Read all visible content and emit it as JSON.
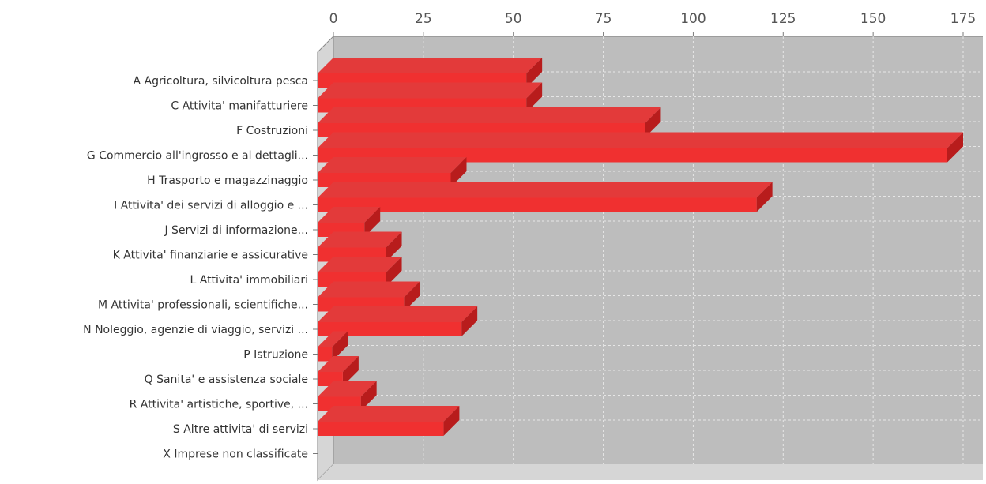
{
  "chart_data": {
    "type": "bar",
    "orientation": "horizontal",
    "style": "3d",
    "title": "",
    "xlabel": "",
    "ylabel": "",
    "xlim": [
      0,
      175
    ],
    "x_ticks": [
      0,
      25,
      50,
      75,
      100,
      125,
      150,
      175
    ],
    "x_axis_position": "top",
    "grid": true,
    "legend": "none",
    "colors": {
      "bar_front": "#f03030",
      "bar_top": "#e33a3a",
      "bar_side": "#b81c1c",
      "plot_back": "#bdbdbd",
      "plot_floor": "#d6d6d6",
      "gridline": "#e6e6e6"
    },
    "categories": [
      "A Agricoltura, silvicoltura pesca",
      "C Attivita' manifatturiere",
      "F Costruzioni",
      "G Commercio all'ingrosso e al dettagli...",
      "H Trasporto e magazzinaggio",
      "I Attivita' dei servizi di alloggio e ...",
      "J Servizi di informazione...",
      "K Attivita' finanziarie e assicurative",
      "L Attivita' immobiliari",
      "M Attivita' professionali, scientifiche...",
      "N Noleggio, agenzie di viaggio, servizi ...",
      "P Istruzione",
      "Q Sanita' e assistenza sociale",
      "R Attivita' artistiche, sportive, ...",
      "S Altre attivita' di servizi",
      "X Imprese non classificate"
    ],
    "values": [
      58,
      58,
      91,
      175,
      37,
      122,
      13,
      19,
      19,
      24,
      40,
      4,
      7,
      12,
      35,
      0
    ]
  }
}
